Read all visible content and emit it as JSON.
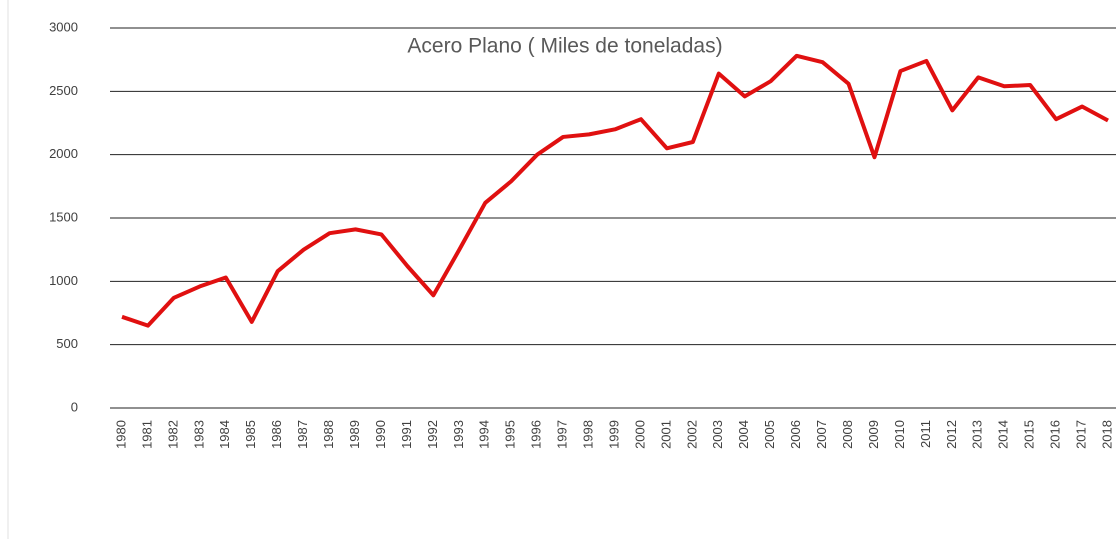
{
  "chart_data": {
    "type": "line",
    "title": "Acero Plano ( Miles de toneladas)",
    "categories": [
      "1980",
      "1981",
      "1982",
      "1983",
      "1984",
      "1985",
      "1986",
      "1987",
      "1988",
      "1989",
      "1990",
      "1991",
      "1992",
      "1993",
      "1994",
      "1995",
      "1996",
      "1997",
      "1998",
      "1999",
      "2000",
      "2001",
      "2002",
      "2003",
      "2004",
      "2005",
      "2006",
      "2007",
      "2008",
      "2009",
      "2010",
      "2011",
      "2012",
      "2013",
      "2014",
      "2015",
      "2016",
      "2017",
      "2018"
    ],
    "series": [
      {
        "color": "#e01010",
        "values": [
          720,
          650,
          870,
          960,
          1030,
          680,
          1080,
          1250,
          1380,
          1410,
          1370,
          1120,
          890,
          1250,
          1620,
          1790,
          2000,
          2140,
          2160,
          2200,
          2280,
          2050,
          2100,
          2640,
          2460,
          2580,
          2780,
          2730,
          2560,
          1980,
          2660,
          2740,
          2350,
          2610,
          2540,
          2550,
          2280,
          2380,
          2270
        ]
      }
    ],
    "ylim": [
      0,
      3000
    ],
    "yticks": [
      0,
      500,
      1000,
      1500,
      2000,
      2500,
      3000
    ],
    "grid": true
  }
}
